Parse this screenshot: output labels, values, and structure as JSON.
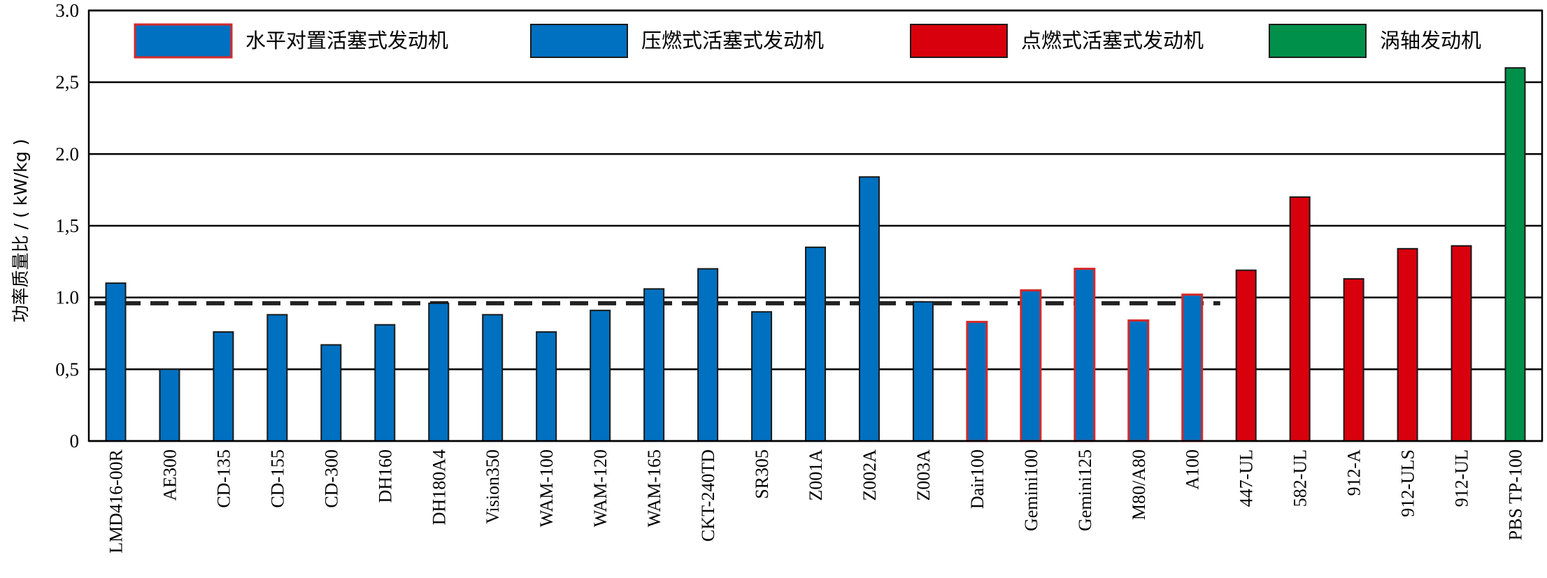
{
  "chart_data": {
    "type": "bar",
    "ylabel": "功率质量比 / ( kW/kg )",
    "ylim": [
      0,
      3.0
    ],
    "yticks": [
      0,
      0.5,
      1.0,
      1.5,
      2.0,
      2.5,
      3.0
    ],
    "ytick_labels": [
      "0",
      "0,5",
      "1.0",
      "1,5",
      "2.0",
      "2,5",
      "3.0"
    ],
    "grid": "horizontal",
    "legend_position": "top",
    "reference_line": {
      "value": 0.96,
      "style": "dashed"
    },
    "colors": {
      "blue": "#0070c0",
      "red": "#d9000d",
      "green": "#00904a",
      "outline_red": "#d42a2a",
      "outline_dark": "#1a1a1a"
    },
    "legend": [
      {
        "label": "水平对置活塞式发动机",
        "fill": "#0070c0",
        "border": "#d42a2a"
      },
      {
        "label": "压燃式活塞式发动机",
        "fill": "#0070c0",
        "border": "#1a1a1a"
      },
      {
        "label": "点燃式活塞式发动机",
        "fill": "#d9000d",
        "border": "#1a1a1a"
      },
      {
        "label": "涡轴发动机",
        "fill": "#00904a",
        "border": "#1a1a1a"
      }
    ],
    "categories": [
      "LMD416-00R",
      "AE300",
      "CD-135",
      "CD-155",
      "CD-300",
      "DH160",
      "DH180A4",
      "Vision350",
      "WAM-100",
      "WAM-120",
      "WAM-165",
      "CKT-240TD",
      "SR305",
      "Z001A",
      "Z002A",
      "Z003A",
      "Dair100",
      "Gemini100",
      "Gemini125",
      "M80/A80",
      "A100",
      "447-UL",
      "582-UL",
      "912-A",
      "912-ULS",
      "912-UL",
      "PBS TP-100"
    ],
    "values": [
      1.1,
      0.5,
      0.76,
      0.88,
      0.67,
      0.81,
      0.96,
      0.88,
      0.76,
      0.91,
      1.06,
      1.2,
      0.9,
      1.35,
      1.84,
      0.97,
      0.83,
      1.05,
      1.2,
      0.84,
      1.02,
      1.19,
      1.7,
      1.13,
      1.34,
      1.36,
      2.6
    ],
    "groups": [
      1,
      1,
      1,
      1,
      1,
      1,
      1,
      1,
      1,
      1,
      1,
      1,
      1,
      1,
      1,
      1,
      0,
      0,
      0,
      0,
      0,
      2,
      2,
      2,
      2,
      2,
      3
    ]
  }
}
